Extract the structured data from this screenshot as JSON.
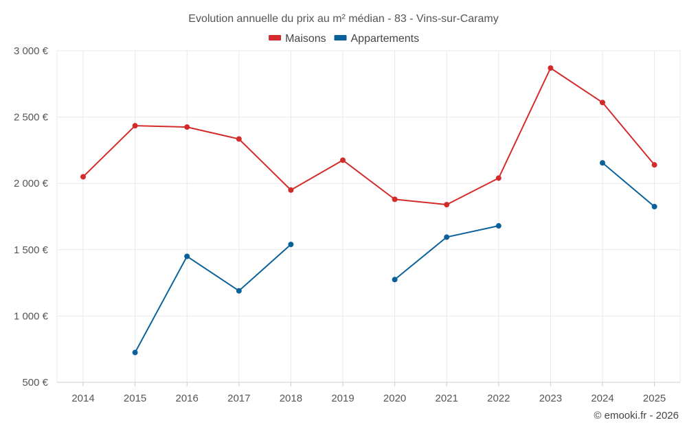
{
  "chart_data": {
    "type": "line",
    "title": "Evolution annuelle du prix au m² médian - 83 - Vins-sur-Caramy",
    "categories": [
      "2014",
      "2015",
      "2016",
      "2017",
      "2018",
      "2019",
      "2020",
      "2021",
      "2022",
      "2023",
      "2024",
      "2025"
    ],
    "series": [
      {
        "name": "Maisons",
        "color": "#d32a2a",
        "values": [
          2050,
          2435,
          2425,
          2335,
          1950,
          2175,
          1880,
          1840,
          2040,
          2870,
          2610,
          2140
        ]
      },
      {
        "name": "Appartements",
        "color": "#0a6199",
        "values": [
          null,
          725,
          1450,
          1190,
          1540,
          null,
          1275,
          1595,
          1680,
          null,
          2155,
          1825
        ]
      }
    ],
    "ylim": [
      500,
      3000
    ],
    "yticks": [
      500,
      1000,
      1500,
      2000,
      2500,
      3000
    ],
    "ytick_labels": [
      "500 €",
      "1 000 €",
      "1 500 €",
      "2 000 €",
      "2 500 €",
      "3 000 €"
    ],
    "grid": true,
    "legend_position": "top-center",
    "xlabel": "",
    "ylabel": ""
  },
  "credit": "© emooki.fr - 2026"
}
